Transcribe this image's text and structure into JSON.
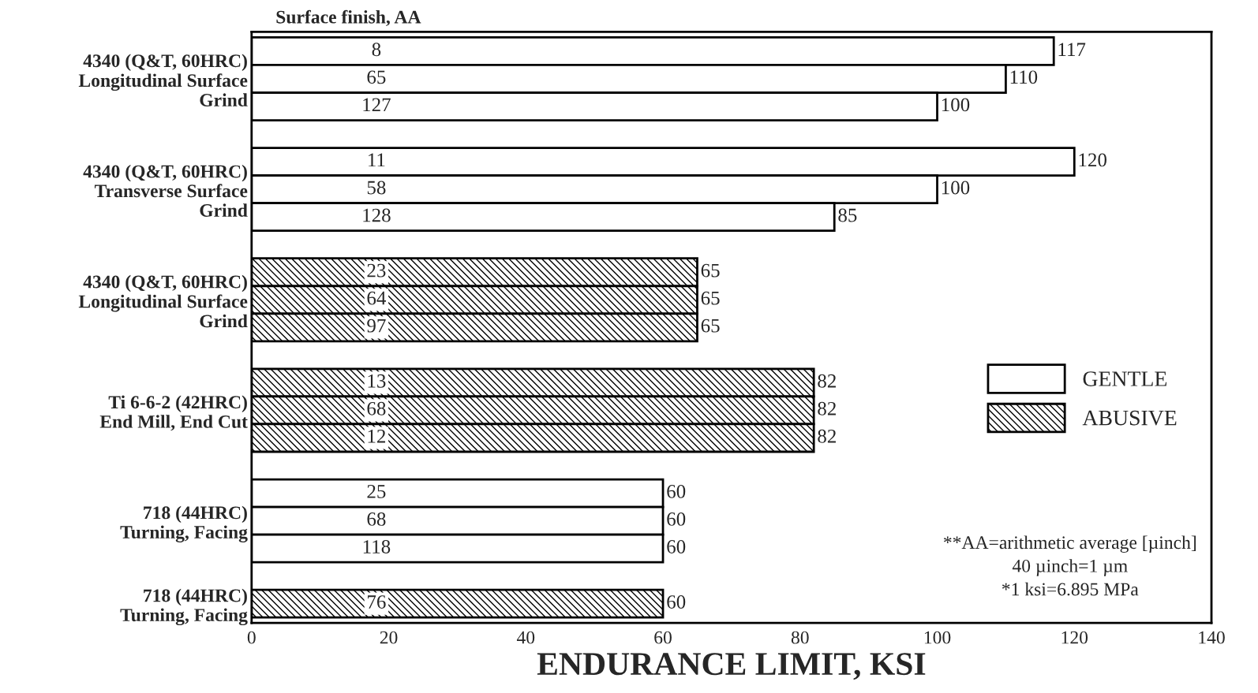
{
  "chart_data": {
    "type": "bar",
    "orientation": "horizontal",
    "subtitle": "Surface finish, AA",
    "xlabel": "ENDURANCE LIMIT, KSI",
    "categories": [
      null,
      "4340 (Q&T, 60HRC)\nLongitudinal Surface\nGrind",
      null,
      null,
      null,
      "4340 (Q&T, 60HRC)\nTransverse Surface\nGrind",
      null,
      null,
      null,
      "4340 (Q&T, 60HRC)\nLongitudinal Surface\nGrind",
      null,
      null,
      null,
      "Ti 6-6-2 (42HRC)\nEnd Mill, End Cut",
      null,
      null,
      null,
      "718 (44HRC)\nTurning, Facing",
      null,
      null,
      "718 (44HRC)\nTurning, Facing"
    ],
    "series": [
      {
        "name": "GENTLE",
        "color": "#ffffff",
        "values": [
          117,
          110,
          100,
          null,
          120,
          100,
          85,
          null,
          null,
          null,
          null,
          null,
          null,
          null,
          null,
          null,
          60,
          60,
          60,
          null,
          null
        ]
      },
      {
        "name": "ABUSIVE",
        "color": "#000000",
        "values": [
          null,
          null,
          null,
          null,
          null,
          null,
          null,
          null,
          65,
          65,
          65,
          null,
          82,
          82,
          82,
          null,
          null,
          null,
          null,
          null,
          60
        ]
      }
    ],
    "data_labels": true,
    "xlim": [
      0,
      140
    ],
    "xticks": [
      0,
      20,
      40,
      60,
      80,
      100,
      120,
      140
    ],
    "legend": "right",
    "grid": false,
    "annotations": [
      "8",
      "65",
      "127",
      null,
      "11",
      "58",
      "128",
      null,
      "23",
      "64",
      "97",
      null,
      "13",
      "68",
      "12",
      null,
      "25",
      "68",
      "118",
      null,
      "76",
      "**AA=arithmetic average [µinch]\n40 µinch=1 µm\n*1 ksi=6.895 MPa"
    ]
  }
}
